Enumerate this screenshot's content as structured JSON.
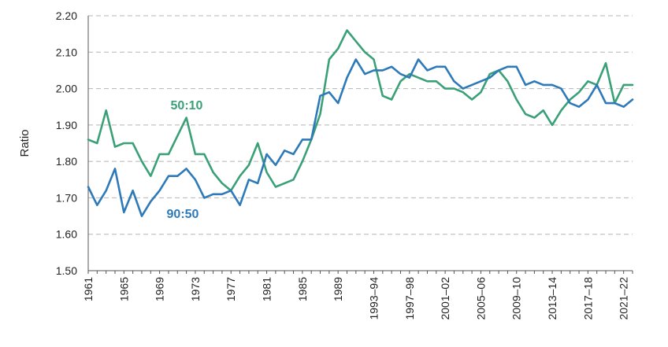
{
  "chart_data": {
    "type": "line",
    "title": "",
    "xlabel": "",
    "ylabel": "Ratio",
    "ylim": [
      1.5,
      2.2
    ],
    "yticks": [
      "1.50",
      "1.60",
      "1.70",
      "1.80",
      "1.90",
      "2.00",
      "2.10",
      "2.20"
    ],
    "grid": "horizontal dashed",
    "x": [
      "1961",
      "1962",
      "1963",
      "1964",
      "1965",
      "1966",
      "1967",
      "1968",
      "1969",
      "1970",
      "1971",
      "1972",
      "1973",
      "1974",
      "1975",
      "1976",
      "1977",
      "1978",
      "1979",
      "1980",
      "1981",
      "1982",
      "1983",
      "1984",
      "1985",
      "1986",
      "1987",
      "1988",
      "1989",
      "1990",
      "1991",
      "1992",
      "1993–94",
      "1994–95",
      "1995–96",
      "1996–97",
      "1997–98",
      "1998–99",
      "1999–00",
      "2000–01",
      "2001–02",
      "2002–03",
      "2003–04",
      "2004–05",
      "2005–06",
      "2006–07",
      "2007–08",
      "2008–09",
      "2009–10",
      "2010–11",
      "2011–12",
      "2012–13",
      "2013–14",
      "2014–15",
      "2015–16",
      "2016–17",
      "2017–18",
      "2018–19",
      "2019–20",
      "2020–21",
      "2021–22",
      "2022–23"
    ],
    "xtick_labels": [
      "1961",
      "1965",
      "1969",
      "1973",
      "1977",
      "1981",
      "1985",
      "1989",
      "1993–94",
      "1997–98",
      "2001–02",
      "2005–06",
      "2009–10",
      "2013–14",
      "2017–18",
      "2021–22"
    ],
    "series": [
      {
        "name": "50:10",
        "color": "#3aa077",
        "values": [
          1.86,
          1.85,
          1.94,
          1.84,
          1.85,
          1.85,
          1.8,
          1.76,
          1.82,
          1.82,
          1.87,
          1.92,
          1.82,
          1.82,
          1.77,
          1.74,
          1.72,
          1.76,
          1.79,
          1.85,
          1.77,
          1.73,
          1.74,
          1.75,
          1.8,
          1.86,
          1.93,
          2.08,
          2.11,
          2.16,
          2.13,
          2.1,
          2.08,
          1.98,
          1.97,
          2.02,
          2.04,
          2.03,
          2.02,
          2.02,
          2.0,
          2.0,
          1.99,
          1.97,
          1.99,
          2.04,
          2.05,
          2.02,
          1.97,
          1.93,
          1.92,
          1.94,
          1.9,
          1.94,
          1.97,
          1.99,
          2.02,
          2.01,
          2.07,
          1.96,
          2.01,
          2.01
        ]
      },
      {
        "name": "90:50",
        "color": "#2e7ab8",
        "values": [
          1.73,
          1.68,
          1.72,
          1.78,
          1.66,
          1.72,
          1.65,
          1.69,
          1.72,
          1.76,
          1.76,
          1.78,
          1.75,
          1.7,
          1.71,
          1.71,
          1.72,
          1.68,
          1.75,
          1.74,
          1.82,
          1.79,
          1.83,
          1.82,
          1.86,
          1.86,
          1.98,
          1.99,
          1.96,
          2.03,
          2.08,
          2.04,
          2.05,
          2.05,
          2.06,
          2.04,
          2.03,
          2.08,
          2.05,
          2.06,
          2.06,
          2.02,
          2.0,
          2.01,
          2.02,
          2.03,
          2.05,
          2.06,
          2.06,
          2.01,
          2.02,
          2.01,
          2.01,
          2.0,
          1.96,
          1.95,
          1.97,
          2.01,
          1.96,
          1.96,
          1.95,
          1.97
        ]
      }
    ]
  }
}
